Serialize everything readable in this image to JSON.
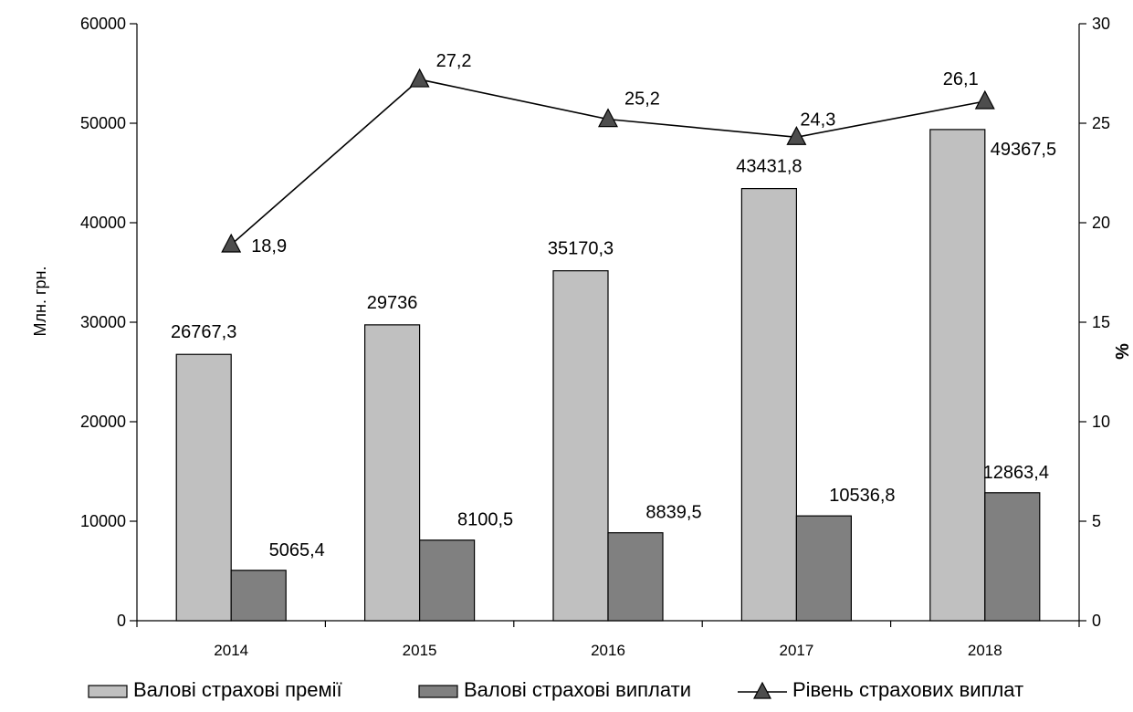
{
  "chart_data": {
    "type": "bar",
    "categories": [
      "2014",
      "2015",
      "2016",
      "2017",
      "2018"
    ],
    "series": [
      {
        "name": "Валові страхові премії",
        "type": "bar",
        "axis": "left",
        "color": "#c0c0c0",
        "values": [
          26767.3,
          29736,
          35170.3,
          43431.8,
          49367.5
        ],
        "labels": [
          "26767,3",
          "29736",
          "35170,3",
          "43431,8",
          "49367,5"
        ]
      },
      {
        "name": "Валові страхові виплати",
        "type": "bar",
        "axis": "left",
        "color": "#808080",
        "values": [
          5065.4,
          8100.5,
          8839.5,
          10536.8,
          12863.4
        ],
        "labels": [
          "5065,4",
          "8100,5",
          "8839,5",
          "10536,8",
          "12863,4"
        ]
      },
      {
        "name": "Рівень страхових виплат",
        "type": "line",
        "axis": "right",
        "color": "#000000",
        "marker": "triangle",
        "marker_color": "#4d4d4d",
        "values": [
          18.9,
          27.2,
          25.2,
          24.3,
          26.1
        ],
        "labels": [
          "18,9",
          "27,2",
          "25,2",
          "24,3",
          "26,1"
        ]
      }
    ],
    "y_left": {
      "label": "Млн. грн.",
      "ylim": [
        0,
        60000
      ],
      "ticks": [
        "0",
        "10000",
        "20000",
        "30000",
        "40000",
        "50000",
        "60000"
      ]
    },
    "y_right": {
      "label": "%",
      "ylim": [
        0,
        30
      ],
      "ticks": [
        "0",
        "5",
        "10",
        "15",
        "20",
        "25",
        "30"
      ]
    },
    "grid": false,
    "legend_position": "bottom"
  }
}
